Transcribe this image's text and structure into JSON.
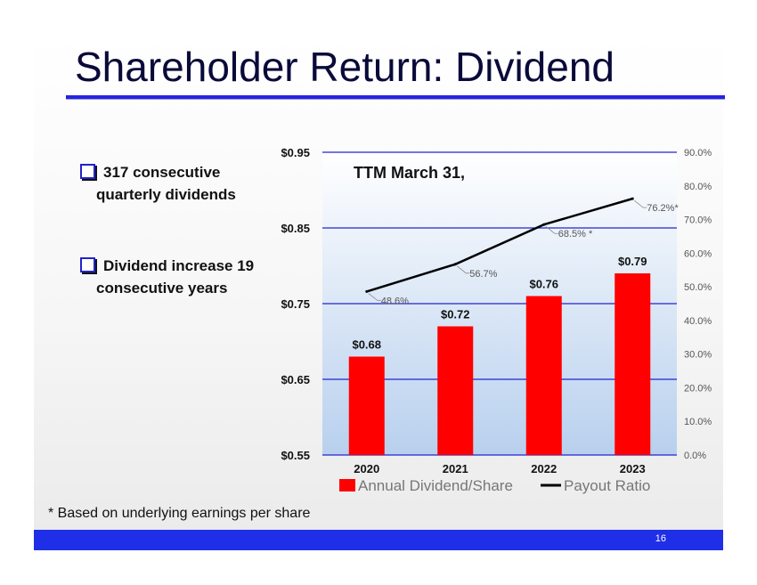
{
  "slide": {
    "title": "Shareholder Return: Dividend",
    "bullets": [
      "317 consecutive quarterly dividends",
      "Dividend increase 19 consecutive years"
    ],
    "footnote": "* Based on underlying earnings per share",
    "page_number": "16"
  },
  "chart_data": {
    "type": "bar",
    "annotation": "TTM March 31,",
    "categories": [
      "2020",
      "2021",
      "2022",
      "2023"
    ],
    "series": [
      {
        "name": "Annual Dividend/Share",
        "kind": "bar",
        "axis": "left",
        "color": "#ff0000",
        "values": [
          0.68,
          0.72,
          0.76,
          0.79
        ],
        "labels": [
          "$0.68",
          "$0.72",
          "$0.76",
          "$0.79"
        ]
      },
      {
        "name": "Payout Ratio",
        "kind": "line",
        "axis": "right",
        "color": "#000000",
        "values": [
          48.6,
          56.7,
          68.5,
          76.2
        ],
        "labels": [
          "48.6%",
          "56.7%",
          "68.5% *",
          "76.2%*"
        ]
      }
    ],
    "y_left": {
      "range": [
        0.55,
        0.95
      ],
      "ticks": [
        0.55,
        0.65,
        0.75,
        0.85,
        0.95
      ],
      "tick_labels": [
        "$0.55",
        "$0.65",
        "$0.75",
        "$0.85",
        "$0.95"
      ]
    },
    "y_right": {
      "range": [
        0,
        90
      ],
      "ticks": [
        0,
        10,
        20,
        30,
        40,
        50,
        60,
        70,
        80,
        90
      ],
      "tick_labels": [
        "0.0%",
        "10.0%",
        "20.0%",
        "30.0%",
        "40.0%",
        "50.0%",
        "60.0%",
        "70.0%",
        "80.0%",
        "90.0%"
      ]
    },
    "grid": true,
    "legend_position": "bottom"
  }
}
